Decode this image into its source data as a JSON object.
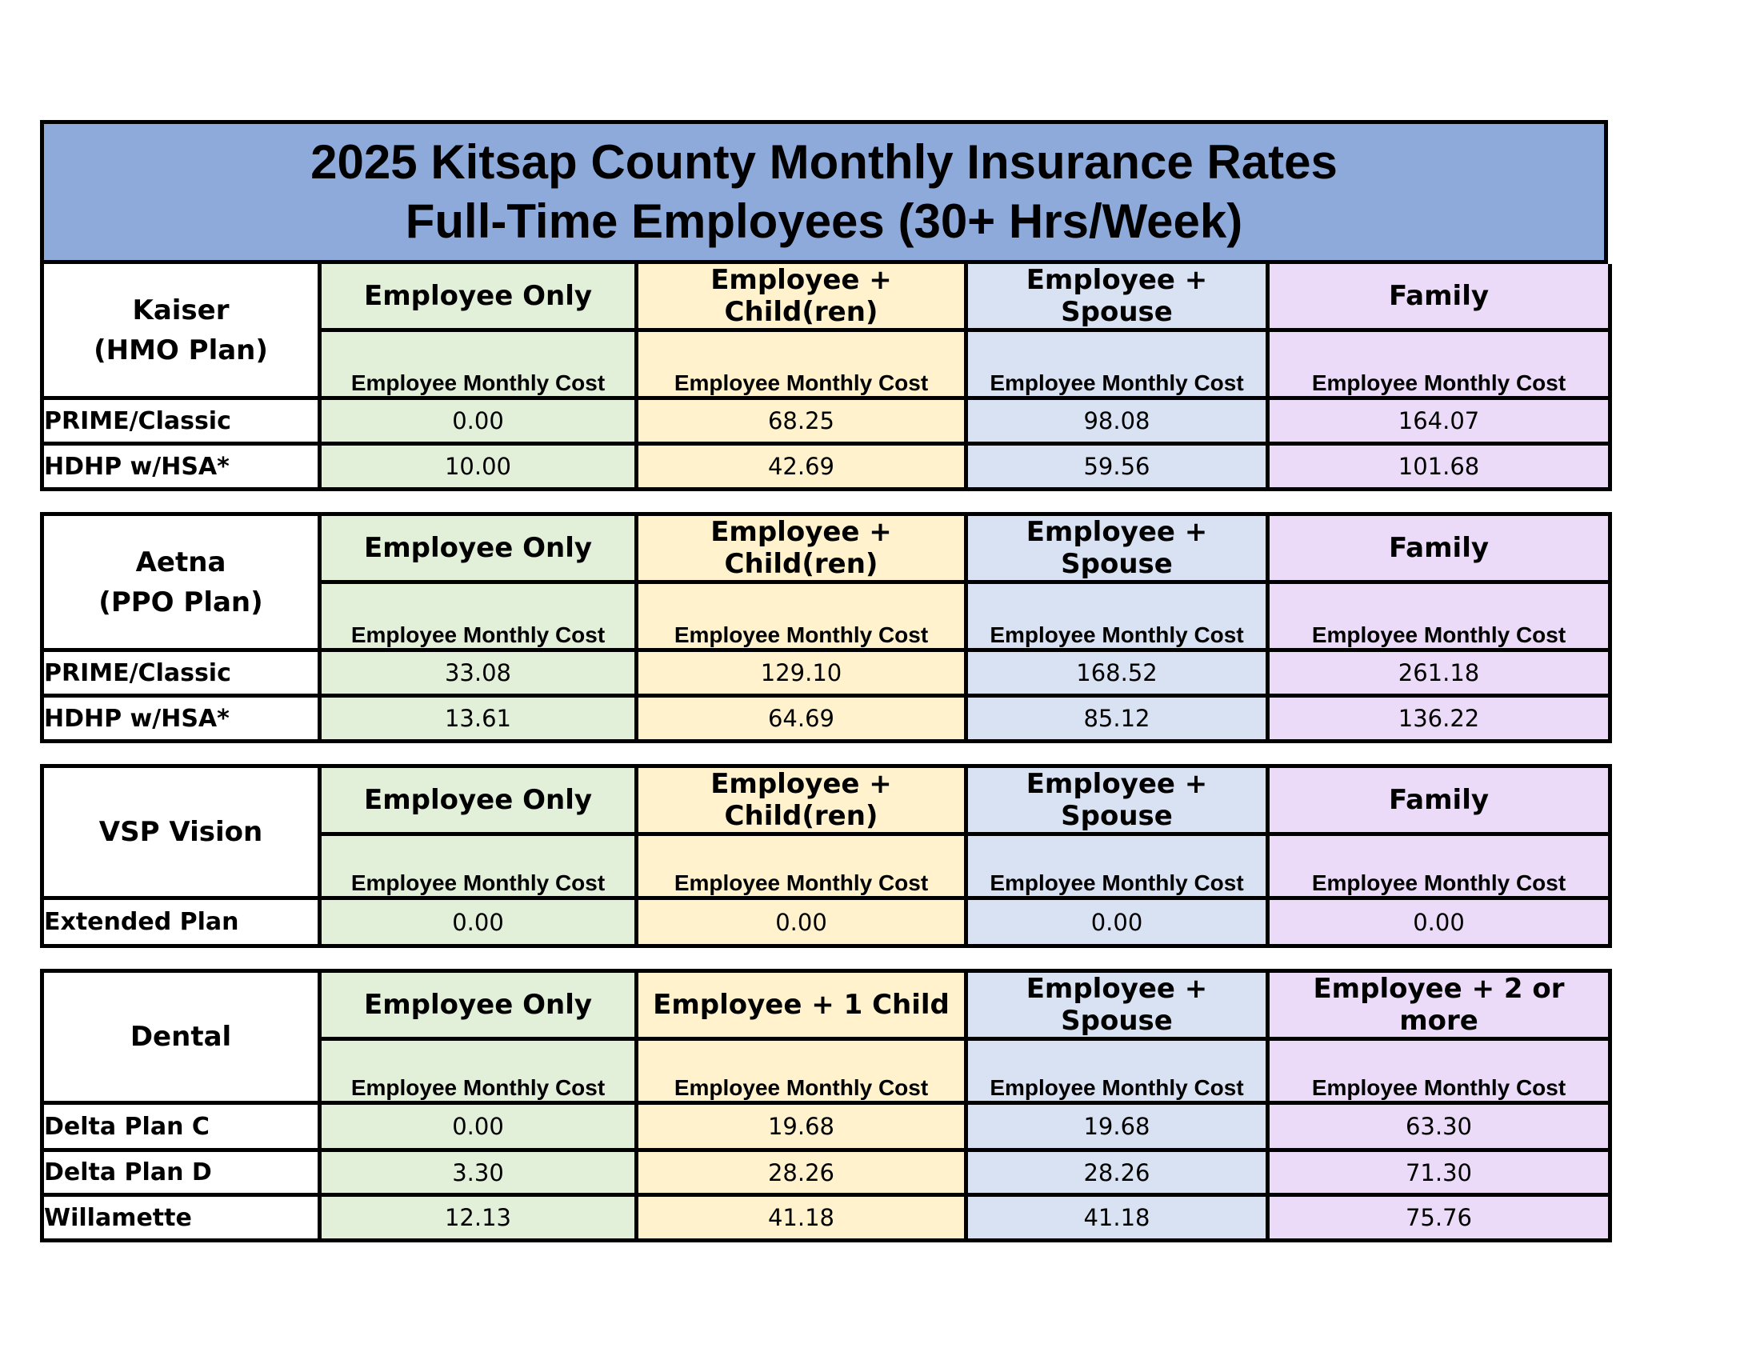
{
  "title": {
    "line1": "2025 Kitsap County Monthly Insurance Rates",
    "line2": "Full-Time Employees (30+ Hrs/Week)"
  },
  "sections": [
    {
      "name_line1": "Kaiser",
      "name_line2": "(HMO Plan)",
      "columns": [
        "Employee Only",
        "Employee + Child(ren)",
        "Employee + Spouse",
        "Family"
      ],
      "sub_label": "Employee Monthly Cost",
      "rows": [
        {
          "label": "PRIME/Classic",
          "values": [
            "0.00",
            "68.25",
            "98.08",
            "164.07"
          ]
        },
        {
          "label": "HDHP w/HSA*",
          "values": [
            "10.00",
            "42.69",
            "59.56",
            "101.68"
          ]
        }
      ]
    },
    {
      "name_line1": "Aetna",
      "name_line2": "(PPO Plan)",
      "columns": [
        "Employee Only",
        "Employee + Child(ren)",
        "Employee + Spouse",
        "Family"
      ],
      "sub_label": "Employee Monthly Cost",
      "rows": [
        {
          "label": "PRIME/Classic",
          "values": [
            "33.08",
            "129.10",
            "168.52",
            "261.18"
          ]
        },
        {
          "label": "HDHP w/HSA*",
          "values": [
            "13.61",
            "64.69",
            "85.12",
            "136.22"
          ]
        }
      ]
    },
    {
      "name_line1": "VSP Vision",
      "name_line2": "",
      "columns": [
        "Employee Only",
        "Employee + Child(ren)",
        "Employee + Spouse",
        "Family"
      ],
      "sub_label": "Employee Monthly Cost",
      "rows": [
        {
          "label": "Extended Plan",
          "values": [
            "0.00",
            "0.00",
            "0.00",
            "0.00"
          ]
        }
      ]
    },
    {
      "name_line1": "Dental",
      "name_line2": "",
      "columns": [
        "Employee Only",
        "Employee + 1 Child",
        "Employee + Spouse",
        "Employee + 2 or more"
      ],
      "sub_label": "Employee Monthly Cost",
      "rows": [
        {
          "label": "Delta Plan C",
          "values": [
            "0.00",
            "19.68",
            "19.68",
            "63.30"
          ]
        },
        {
          "label": "Delta Plan D",
          "values": [
            "3.30",
            "28.26",
            "28.26",
            "71.30"
          ]
        },
        {
          "label": "Willamette",
          "values": [
            "12.13",
            "41.18",
            "41.18",
            "75.76"
          ]
        }
      ]
    }
  ],
  "colors": {
    "title_bg": "#8eaadb",
    "employee_only": "#e2efd9",
    "employee_child": "#fff2cc",
    "employee_spouse": "#d9e2f3",
    "family": "#ebdaf8"
  }
}
